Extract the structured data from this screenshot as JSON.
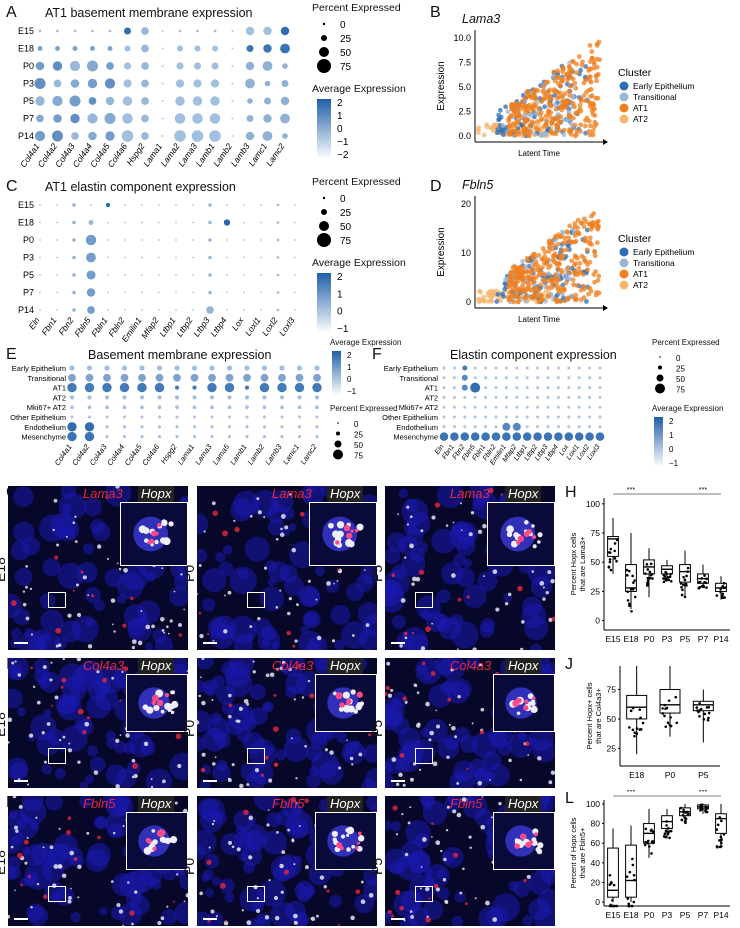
{
  "panel_labels": {
    "A": "A",
    "B": "B",
    "C": "C",
    "D": "D",
    "E": "E",
    "F": "F",
    "G": "G",
    "H": "H",
    "I": "I",
    "J": "J",
    "K": "K",
    "L": "L"
  },
  "panelA": {
    "title": "AT1 basement membrane expression",
    "rows": [
      "E15",
      "E18",
      "P0",
      "P3",
      "P5",
      "P7",
      "P14"
    ],
    "cols": [
      "Col4a1",
      "Col4a2",
      "Col4a3",
      "Col4a4",
      "Col4a5",
      "Col4a6",
      "Hspg2",
      "Lama1",
      "Lama2",
      "Lama3",
      "Lamb1",
      "Lamb2",
      "Lamb3",
      "Lamc1",
      "Lamc2"
    ]
  },
  "panelC": {
    "title": "AT1 elastin component expression",
    "rows": [
      "E15",
      "E18",
      "P0",
      "P3",
      "P5",
      "P7",
      "P14"
    ],
    "cols": [
      "Eln",
      "Fbn1",
      "Fbn2",
      "Fbln5",
      "Fbln1",
      "Fbln2",
      "Emilin1",
      "Mfap2",
      "Ltbp1",
      "Ltbp2",
      "Ltbp3",
      "Ltbp4",
      "Lox",
      "Loxl1",
      "Loxl2",
      "Loxl3"
    ]
  },
  "panelE": {
    "title": "Basement membrane expression",
    "rows": [
      "Early Epithelium",
      "Transitional",
      "AT1",
      "AT2",
      "Mki67+ AT2",
      "Other Epithelium",
      "Endothelium",
      "Mesenchyme"
    ],
    "cols": [
      "Col4a1",
      "Col4a2",
      "Col4a3",
      "Col4a4",
      "Col4a5",
      "Col4a6",
      "Hspg2",
      "Lama1",
      "Lama3",
      "Lama5",
      "Lamb1",
      "Lamb2",
      "Lamb3",
      "Lamc1",
      "Lamc2"
    ]
  },
  "panelF": {
    "title": "Elastin component expression",
    "rows": [
      "Early Epithelium",
      "Transitional",
      "AT1",
      "AT2",
      "Mki67+ AT2",
      "Other Epithelium",
      "Endothelium",
      "Mesenchyme"
    ],
    "cols": [
      "Eln",
      "Fbn1",
      "Fbn2",
      "Fbln5",
      "Fbln1",
      "Fbln2",
      "Emilin1",
      "Mfap2",
      "Ltbp1",
      "Ltbp2",
      "Ltbp3",
      "Ltbp4",
      "Lox",
      "Loxl1",
      "Loxl2",
      "Loxl3"
    ]
  },
  "legends": {
    "pct_title": "Percent Expressed",
    "pct_values": [
      "0",
      "25",
      "50",
      "75"
    ],
    "avg_title": "Average Expression",
    "avgA_ticks": [
      "2",
      "1",
      "0",
      "−1",
      "−2"
    ],
    "avgC_ticks": [
      "2",
      "1",
      "0",
      "−1"
    ],
    "avgE_ticks": [
      "2",
      "1",
      "0",
      "−1"
    ],
    "avgF_ticks": [
      "2",
      "1",
      "0",
      "−1"
    ]
  },
  "panelB": {
    "gene": "Lama3",
    "ylabel": "Expression",
    "xlabel": "Latent Time",
    "yticks": [
      "0.0",
      "2.5",
      "5.0",
      "7.5",
      "10.0"
    ],
    "legend_title": "Cluster",
    "clusters": [
      "Early Epithelium",
      "Transitional",
      "AT1",
      "AT2"
    ]
  },
  "panelD": {
    "gene": "Fbln5",
    "ylabel": "Expression",
    "xlabel": "Latent Time",
    "yticks": [
      "0",
      "10",
      "20"
    ],
    "legend_title": "Cluster",
    "clusters": [
      "Early Epithelium",
      "Transitiona",
      "AT1",
      "AT2"
    ]
  },
  "colors": {
    "early_epi": "#2f6fb5",
    "transitional": "#9cb6d6",
    "at1": "#f07f1d",
    "at2": "#f6b66e",
    "dot_low": "#d9e8f5",
    "dot_high": "#1f5fa8",
    "red_tag": "#e8283a"
  },
  "microscopy": {
    "rowG": [
      {
        "red": "Lama3",
        "white": "Hopx",
        "stage": "E18"
      },
      {
        "red": "Lama3",
        "white": "Hopx",
        "stage": "P0"
      },
      {
        "red": "Lama3",
        "white": "Hopx",
        "stage": "P5"
      }
    ],
    "rowI": [
      {
        "red": "Col4a3",
        "white": "Hopx",
        "stage": "E18"
      },
      {
        "red": "Col4a3",
        "white": "Hopx",
        "stage": "P0"
      },
      {
        "red": "Col4a3",
        "white": "Hopx",
        "stage": "P5"
      }
    ],
    "rowK": [
      {
        "red": "Fbln5",
        "white": "Hopx",
        "stage": "E18"
      },
      {
        "red": "Fbln5",
        "white": "Hopx",
        "stage": "P0"
      },
      {
        "red": "Fbln5",
        "white": "Hopx",
        "stage": "P5"
      }
    ]
  },
  "panelH": {
    "ylabel_l1": "Percent Hopx cells",
    "ylabel_l2": "that are Lama3+",
    "groups": [
      "E15",
      "E18",
      "P0",
      "P3",
      "P5",
      "P7",
      "P14"
    ],
    "yticks": [
      "0",
      "25",
      "50",
      "75",
      "100"
    ],
    "sig": [
      "***",
      "***"
    ]
  },
  "panelJ": {
    "ylabel_l1": "Percent Hopx+ cells",
    "ylabel_l2": "that are Col4a3+",
    "groups": [
      "E18",
      "P0",
      "P5"
    ],
    "yticks": [
      "25",
      "50",
      "75"
    ]
  },
  "panelL": {
    "ylabel_l1": "Percent of Hopx cells",
    "ylabel_l2": "that are Fbln5+",
    "groups": [
      "E15",
      "E18",
      "P0",
      "P3",
      "P5",
      "P7",
      "P14"
    ],
    "yticks": [
      "0",
      "20",
      "40",
      "60",
      "80",
      "100"
    ],
    "sig": [
      "***",
      "***"
    ]
  }
}
